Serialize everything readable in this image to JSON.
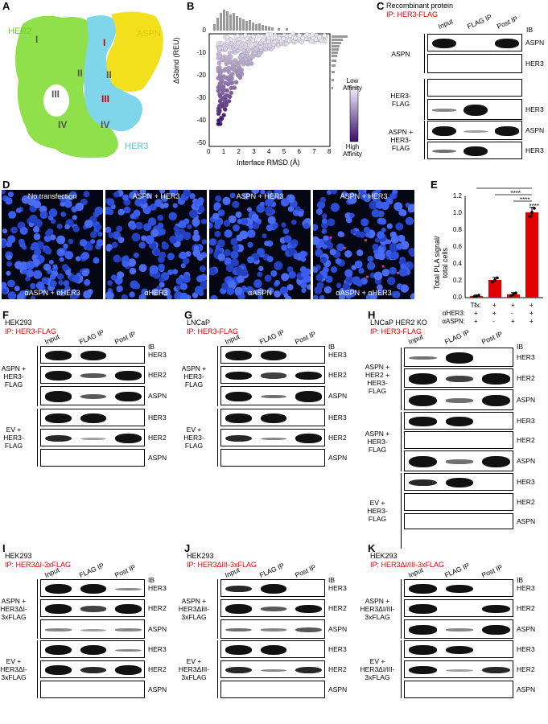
{
  "panels": {
    "A": {
      "label": "A",
      "domains": [
        "HER2",
        "ASPN",
        "HER3"
      ],
      "numerals_her2": [
        "I",
        "II",
        "III",
        "IV"
      ],
      "numerals_her3": [
        "I",
        "II",
        "III",
        "IV"
      ],
      "numerals_aspn": [
        "I",
        "II",
        "III"
      ]
    },
    "B": {
      "label": "B",
      "xlabel": "Interface RMSD (Å)",
      "ylabel": "ΔGbind (REU)",
      "xticks": [
        "0",
        "1",
        "2",
        "3",
        "4",
        "5",
        "6",
        "7",
        "8"
      ],
      "yticks": [
        "0",
        "-10",
        "-20",
        "-30",
        "-40",
        "-50"
      ],
      "legend_top": "Low Affinity",
      "legend_bottom": "High Affinity"
    },
    "C": {
      "label": "C",
      "title": "Recombinant protein",
      "ip": "IP: HER3-FLAG",
      "cols": [
        "Input",
        "FLAG IP",
        "Post IP"
      ],
      "ib": "IB",
      "groups": [
        "ASPN",
        "HER3-\nFLAG",
        "ASPN +\nHER3-\nFLAG"
      ],
      "rows": [
        "ASPN",
        "HER3",
        "",
        "HER3",
        "ASPN",
        "HER3"
      ]
    },
    "D": {
      "label": "D",
      "captions_top": [
        "No transfection",
        "ASPN + HER3",
        "ASPN + HER3",
        "ASPN + HER3"
      ],
      "captions_bottom": [
        "αASPN + αHER3",
        "αHER3",
        "αASPN",
        "αASPN + αHER3"
      ]
    },
    "E": {
      "label": "E",
      "ylabel": "Total PLA signal/\ntotal cells",
      "yticks": [
        "0.0",
        "0.2",
        "0.4",
        "0.6",
        "0.8",
        "1.0",
        "1.2"
      ],
      "sig": "****",
      "row_labels": [
        "Tfx:",
        "αHER3:",
        "αASPN:"
      ],
      "tfx": [
        "-",
        "+",
        "+",
        "+"
      ],
      "her3": [
        "+",
        "+",
        "-",
        "+"
      ],
      "aspn": [
        "+",
        "-",
        "+",
        "+"
      ]
    },
    "F": {
      "label": "F",
      "cell": "HEK293",
      "ip": "IP: HER3-FLAG",
      "cols": [
        "Input",
        "FLAG IP",
        "Post IP"
      ],
      "ib": "IB",
      "groups": [
        "ASPN +\nHER3-\nFLAG",
        "EV +\nHER3-\nFLAG"
      ],
      "rows": [
        "HER3",
        "HER2",
        "ASPN",
        "HER3",
        "HER2",
        "ASPN"
      ]
    },
    "G": {
      "label": "G",
      "cell": "LNCaP",
      "ip": "IP: HER3-FLAG",
      "cols": [
        "Input",
        "FLAG IP",
        "Post IP"
      ],
      "ib": "IB",
      "groups": [
        "ASPN +\nHER3-\nFLAG",
        "EV +\nHER3-\nFLAG"
      ],
      "rows": [
        "HER3",
        "HER2",
        "ASPN",
        "HER3",
        "HER2",
        "ASPN"
      ]
    },
    "H": {
      "label": "H",
      "cell": "LNCaP HER2 KO",
      "ip": "IP: HER3-FLAG",
      "cols": [
        "Input",
        "FLAG IP",
        "Post IP"
      ],
      "ib": "IB",
      "groups": [
        "ASPN +\nHER2 +\nHER3-\nFLAG",
        "ASPN +\nHER3-\nFLAG",
        "EV +\nHER3-\nFLAG"
      ],
      "rows": [
        "HER3",
        "HER2",
        "ASPN",
        "HER3",
        "HER2",
        "ASPN",
        "HER3",
        "HER2",
        "ASPN"
      ]
    },
    "I": {
      "label": "I",
      "cell": "HEK293",
      "ip": "IP: HER3ΔI-3xFLAG",
      "cols": [
        "Input",
        "FLAG IP",
        "Post IP"
      ],
      "ib": "IB",
      "groups": [
        "ASPN +\nHER3ΔI-\n3xFLAG",
        "EV +\nHER3ΔI-\n3xFLAG"
      ],
      "rows": [
        "HER3",
        "HER2",
        "ASPN",
        "HER3",
        "HER2",
        "ASPN"
      ]
    },
    "J": {
      "label": "J",
      "cell": "HEK293",
      "ip": "IP: HER3ΔIII-3xFLAG",
      "cols": [
        "Input",
        "FLAG IP",
        "Post IP"
      ],
      "ib": "IB",
      "groups": [
        "ASPN +\nHER3ΔIII-\n3xFLAG",
        "EV +\nHER3ΔIII-\n3xFLAG"
      ],
      "rows": [
        "HER3",
        "HER2",
        "ASPN",
        "HER3",
        "HER2",
        "ASPN"
      ]
    },
    "K": {
      "label": "K",
      "cell": "HEK293",
      "ip": "IP: HER3ΔI/III-3xFLAG",
      "cols": [
        "Input",
        "FLAG IP",
        "Post IP"
      ],
      "ib": "IB",
      "groups": [
        "ASPN +\nHER3ΔI/III-\n3xFLAG",
        "EV +\nHER3ΔI/III-\n3xFLAG"
      ],
      "rows": [
        "HER3",
        "HER2",
        "ASPN",
        "HER3",
        "HER2",
        "ASPN"
      ]
    }
  },
  "colors": {
    "her2": "#8fe04a",
    "her3": "#7fd6ea",
    "aspn": "#f3e01c",
    "red": "#e00000",
    "nuclei": "#2b4fd8"
  }
}
